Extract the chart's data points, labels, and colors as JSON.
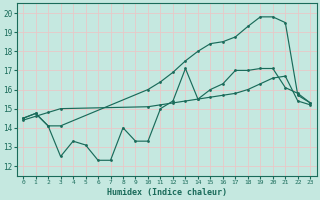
{
  "xlabel": "Humidex (Indice chaleur)",
  "xlim": [
    -0.5,
    23.5
  ],
  "ylim": [
    11.5,
    20.5
  ],
  "yticks": [
    12,
    13,
    14,
    15,
    16,
    17,
    18,
    19,
    20
  ],
  "xticks": [
    0,
    1,
    2,
    3,
    4,
    5,
    6,
    7,
    8,
    9,
    10,
    11,
    12,
    13,
    14,
    15,
    16,
    17,
    18,
    19,
    20,
    21,
    22,
    23
  ],
  "bg_color": "#c5e8e0",
  "grid_color": "#e8c8c8",
  "line_color": "#1a6b5a",
  "line1_x": [
    0,
    1,
    2,
    3,
    10,
    11,
    12,
    13,
    14,
    15,
    16,
    17,
    18,
    19,
    20,
    21,
    22,
    23
  ],
  "line1_y": [
    14.5,
    14.75,
    14.1,
    14.1,
    16.0,
    16.4,
    16.9,
    17.5,
    18.0,
    18.4,
    18.5,
    18.75,
    19.3,
    19.8,
    19.8,
    19.5,
    15.7,
    15.3
  ],
  "line2_x": [
    0,
    1,
    2,
    3,
    4,
    5,
    6,
    7,
    8,
    9,
    10,
    11,
    12,
    13,
    14,
    15,
    16,
    17,
    18,
    19,
    20,
    21,
    22,
    23
  ],
  "line2_y": [
    14.5,
    14.75,
    14.1,
    12.5,
    13.3,
    13.1,
    12.3,
    12.3,
    14.0,
    13.3,
    13.3,
    15.0,
    15.4,
    17.1,
    15.5,
    16.0,
    16.3,
    17.0,
    17.0,
    17.1,
    17.1,
    16.1,
    15.8,
    15.3
  ],
  "line3_x": [
    0,
    1,
    2,
    3,
    10,
    11,
    12,
    13,
    14,
    15,
    16,
    17,
    18,
    19,
    20,
    21,
    22,
    23
  ],
  "line3_y": [
    14.4,
    14.6,
    14.8,
    15.0,
    15.1,
    15.2,
    15.3,
    15.4,
    15.5,
    15.6,
    15.7,
    15.8,
    16.0,
    16.3,
    16.6,
    16.7,
    15.4,
    15.2
  ]
}
